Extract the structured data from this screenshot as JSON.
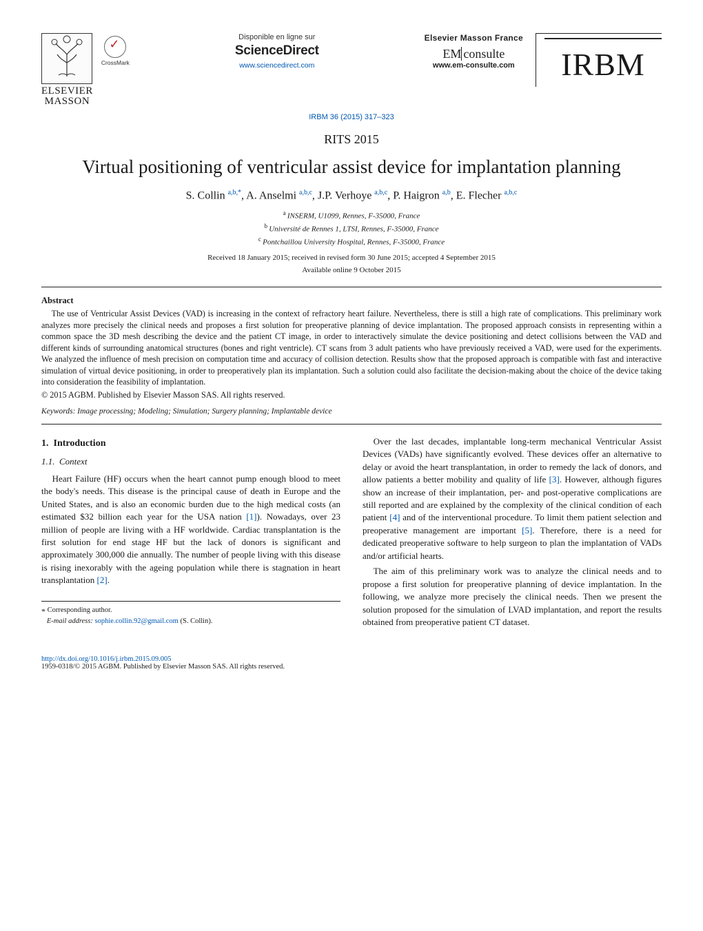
{
  "header": {
    "elsevier_label": "ELSEVIER",
    "masson_label": "MASSON",
    "crossmark_label": "CrossMark",
    "disponible": "Disponible en ligne sur",
    "sciencedirect": "ScienceDirect",
    "sd_url": "www.sciencedirect.com",
    "emf_name": "Elsevier Masson France",
    "em_prefix": "EM",
    "em_suffix": "consulte",
    "em_url": "www.em-consulte.com",
    "journal": "IRBM",
    "citation": "IRBM 36 (2015) 317–323"
  },
  "title_block": {
    "conference": "RITS 2015",
    "title": "Virtual positioning of ventricular assist device for implantation planning",
    "authors_html": "S. Collin|a,b,*|, A. Anselmi|a,b,c|, J.P. Verhoye|a,b,c|, P. Haigron|a,b|, E. Flecher|a,b,c|",
    "authors": [
      {
        "name": "S. Collin",
        "aff": "a,b,",
        "star": true
      },
      {
        "name": "A. Anselmi",
        "aff": "a,b,c"
      },
      {
        "name": "J.P. Verhoye",
        "aff": "a,b,c"
      },
      {
        "name": "P. Haigron",
        "aff": "a,b"
      },
      {
        "name": "E. Flecher",
        "aff": "a,b,c"
      }
    ],
    "affiliations": [
      {
        "key": "a",
        "text": "INSERM, U1099, Rennes, F-35000, France"
      },
      {
        "key": "b",
        "text": "Université de Rennes 1, LTSI, Rennes, F-35000, France"
      },
      {
        "key": "c",
        "text": "Pontchaillou University Hospital, Rennes, F-35000, France"
      }
    ],
    "dates": "Received 18 January 2015; received in revised form 30 June 2015; accepted 4 September 2015",
    "available": "Available online 9 October 2015"
  },
  "abstract": {
    "label": "Abstract",
    "body": "The use of Ventricular Assist Devices (VAD) is increasing in the context of refractory heart failure. Nevertheless, there is still a high rate of complications. This preliminary work analyzes more precisely the clinical needs and proposes a first solution for preoperative planning of device implantation. The proposed approach consists in representing within a common space the 3D mesh describing the device and the patient CT image, in order to interactively simulate the device positioning and detect collisions between the VAD and different kinds of surrounding anatomical structures (bones and right ventricle). CT scans from 3 adult patients who have previously received a VAD, were used for the experiments. We analyzed the influence of mesh precision on computation time and accuracy of collision detection. Results show that the proposed approach is compatible with fast and interactive simulation of virtual device positioning, in order to preoperatively plan its implantation. Such a solution could also facilitate the decision-making about the choice of the device taking into consideration the feasibility of implantation.",
    "copyright": "© 2015 AGBM. Published by Elsevier Masson SAS. All rights reserved.",
    "keywords_label": "Keywords:",
    "keywords": "Image processing; Modeling; Simulation; Surgery planning; Implantable device"
  },
  "body": {
    "sec1_num": "1.",
    "sec1_title": "Introduction",
    "sec11_num": "1.1.",
    "sec11_title": "Context",
    "left_paras": [
      "Heart Failure (HF) occurs when the heart cannot pump enough blood to meet the body's needs. This disease is the principal cause of death in Europe and the United States, and is also an economic burden due to the high medical costs (an estimated $32 billion each year for the USA nation [1]). Nowadays, over 23 million of people are living with a HF worldwide. Cardiac transplantation is the first solution for end stage HF but the lack of donors is significant and approximately 300,000 die annually. The number of people living with this disease is rising inexorably with the ageing population while there is stagnation in heart transplantation [2]."
    ],
    "right_paras": [
      "Over the last decades, implantable long-term mechanical Ventricular Assist Devices (VADs) have significantly evolved. These devices offer an alternative to delay or avoid the heart transplantation, in order to remedy the lack of donors, and allow patients a better mobility and quality of life [3]. However, although figures show an increase of their implantation, per- and post-operative complications are still reported and are explained by the complexity of the clinical condition of each patient [4] and of the interventional procedure. To limit them patient selection and preoperative management are important [5]. Therefore, there is a need for dedicated preoperative software to help surgeon to plan the implantation of VADs and/or artificial hearts.",
      "The aim of this preliminary work was to analyze the clinical needs and to propose a first solution for preoperative planning of device implantation. In the following, we analyze more precisely the clinical needs. Then we present the solution proposed for the simulation of LVAD implantation, and report the results obtained from preoperative patient CT dataset."
    ],
    "citations": {
      "c1": "[1]",
      "c2": "[2]",
      "c3": "[3]",
      "c4": "[4]",
      "c5": "[5]"
    }
  },
  "footnotes": {
    "star_label": "*",
    "corresponding": "Corresponding author.",
    "email_label": "E-mail address:",
    "email": "sophie.collin.92@gmail.com",
    "email_who": "(S. Collin)."
  },
  "footer": {
    "doi": "http://dx.doi.org/10.1016/j.irbm.2015.09.005",
    "issn_line": "1959-0318/© 2015 AGBM. Published by Elsevier Masson SAS. All rights reserved."
  },
  "colors": {
    "link": "#0057b1",
    "text": "#1a1a1a",
    "rule": "#222222"
  }
}
